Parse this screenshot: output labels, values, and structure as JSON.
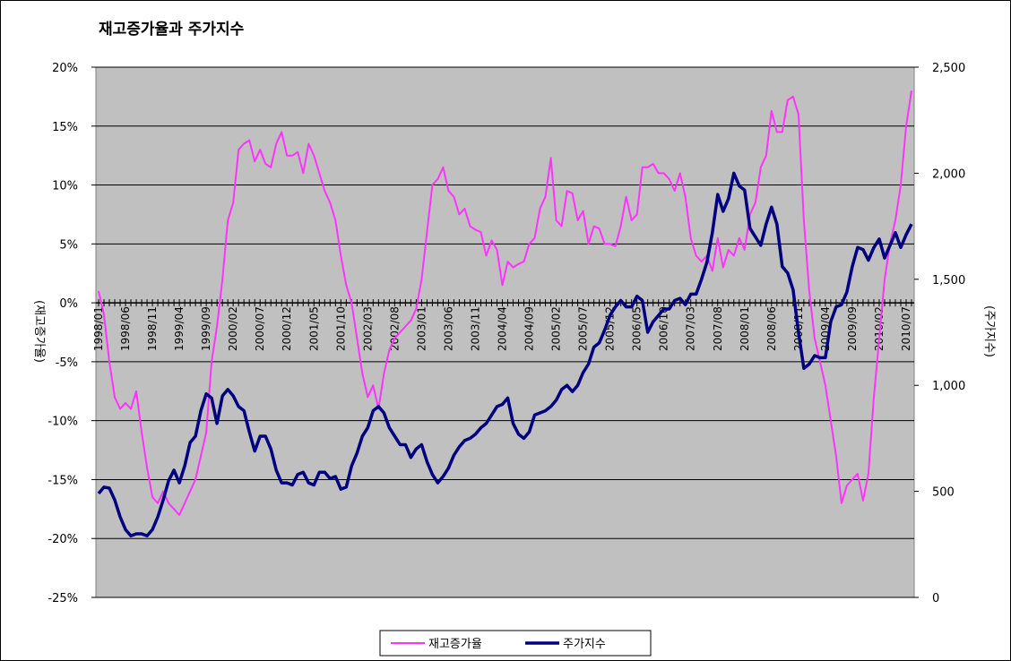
{
  "chart_data": {
    "type": "line",
    "title": "재고증가율과 주가지수",
    "y_label": "(재고증가율)",
    "y2_label": "(주가지수)",
    "categories": [
      "1998/01",
      null,
      null,
      null,
      null,
      "1998/06",
      null,
      null,
      null,
      null,
      "1998/11",
      null,
      null,
      null,
      null,
      "1999/04",
      null,
      null,
      null,
      null,
      "1999/09",
      null,
      null,
      null,
      null,
      "2000/02",
      null,
      null,
      null,
      null,
      "2000/07",
      null,
      null,
      null,
      null,
      "2000/12",
      null,
      null,
      null,
      null,
      "2001/05",
      null,
      null,
      null,
      null,
      "2001/10",
      null,
      null,
      null,
      null,
      "2002/03",
      null,
      null,
      null,
      null,
      "2002/08",
      null,
      null,
      null,
      null,
      "2003/01",
      null,
      null,
      null,
      null,
      "2003/06",
      null,
      null,
      null,
      null,
      "2003/11",
      null,
      null,
      null,
      null,
      "2004/04",
      null,
      null,
      null,
      null,
      "2004/09",
      null,
      null,
      null,
      null,
      "2005/02",
      null,
      null,
      null,
      null,
      "2005/07",
      null,
      null,
      null,
      null,
      "2005/12",
      null,
      null,
      null,
      null,
      "2006/05",
      null,
      null,
      null,
      null,
      "2006/10",
      null,
      null,
      null,
      null,
      "2007/03",
      null,
      null,
      null,
      null,
      "2007/08",
      null,
      null,
      null,
      null,
      "2008/01",
      null,
      null,
      null,
      null,
      "2008/06",
      null,
      null,
      null,
      null,
      "2008/11",
      null,
      null,
      null,
      null,
      "2009/04",
      null,
      null,
      null,
      null,
      "2009/09",
      null,
      null,
      null,
      null,
      "2010/02",
      null,
      null,
      null,
      null,
      "2010/07",
      null
    ],
    "series": [
      {
        "name": "재고증가율",
        "color": "#ff33ff",
        "axis": "y",
        "values": [
          1,
          -1,
          -5,
          -8,
          -9,
          -8.5,
          -9,
          -7.5,
          -11,
          -14,
          -16.5,
          -17,
          -16,
          -17,
          -17.5,
          -18,
          -17,
          -16,
          -15,
          -13,
          -11,
          -5,
          -2,
          2,
          7,
          8.5,
          13,
          13.5,
          13.8,
          12,
          13,
          11.8,
          11.5,
          13.5,
          14.5,
          12.5,
          12.5,
          12.8,
          11,
          13.5,
          12.5,
          11,
          9.5,
          8.5,
          7,
          4,
          1.5,
          0,
          -3,
          -6,
          -8,
          -7,
          -9,
          -6,
          -4,
          -3,
          -2.5,
          -2,
          -1.5,
          -0.5,
          2,
          6,
          10,
          10.5,
          11.5,
          9.5,
          9,
          7.5,
          8,
          6.5,
          6.2,
          6,
          4,
          5.3,
          4.5,
          1.5,
          3.5,
          3,
          3.3,
          3.5,
          5,
          5.5,
          8,
          9,
          12.3,
          7,
          6.5,
          9.5,
          9.3,
          7,
          7.8,
          5,
          6.5,
          6.3,
          5,
          5,
          4.8,
          6.5,
          9,
          7,
          7.5,
          11.5,
          11.5,
          11.8,
          11,
          11,
          10.5,
          9.5,
          11,
          9,
          5.5,
          4,
          3.5,
          4,
          2.7,
          5.5,
          3,
          4.5,
          4,
          5.5,
          4.5,
          7.5,
          8.5,
          11.5,
          12.5,
          16.3,
          14.5,
          14.5,
          17.2,
          17.5,
          16,
          7,
          1,
          -3,
          -5,
          -7,
          -10,
          -13,
          -17,
          -15.5,
          -15,
          -14.5,
          -16.8,
          -14.5,
          -8,
          -3,
          2,
          5,
          7,
          10,
          15,
          18
        ]
      },
      {
        "name": "주가지수",
        "color": "#000080",
        "axis": "y2",
        "values": [
          490,
          520,
          515,
          460,
          380,
          320,
          290,
          300,
          300,
          290,
          320,
          380,
          460,
          550,
          600,
          540,
          620,
          730,
          760,
          880,
          960,
          940,
          820,
          950,
          980,
          950,
          900,
          880,
          780,
          690,
          760,
          760,
          700,
          600,
          540,
          540,
          530,
          580,
          590,
          540,
          530,
          590,
          590,
          560,
          570,
          510,
          520,
          620,
          680,
          760,
          800,
          880,
          900,
          870,
          800,
          760,
          720,
          720,
          660,
          700,
          720,
          640,
          580,
          540,
          570,
          610,
          670,
          710,
          740,
          750,
          770,
          800,
          820,
          860,
          900,
          910,
          940,
          820,
          770,
          750,
          780,
          860,
          870,
          880,
          900,
          930,
          980,
          1000,
          970,
          1000,
          1060,
          1100,
          1180,
          1200,
          1260,
          1330,
          1370,
          1400,
          1370,
          1370,
          1420,
          1400,
          1250,
          1300,
          1330,
          1360,
          1360,
          1400,
          1410,
          1380,
          1430,
          1430,
          1500,
          1580,
          1720,
          1900,
          1820,
          1880,
          2000,
          1940,
          1920,
          1740,
          1700,
          1660,
          1760,
          1840,
          1760,
          1560,
          1530,
          1450,
          1250,
          1080,
          1100,
          1140,
          1130,
          1130,
          1300,
          1370,
          1380,
          1440,
          1560,
          1650,
          1640,
          1590,
          1650,
          1690,
          1600,
          1660,
          1720,
          1650,
          1710,
          1760
        ]
      }
    ],
    "ylim": [
      -25,
      20
    ],
    "yticks": [
      {
        "value": -25,
        "label": "-25%"
      },
      {
        "value": -20,
        "label": "-20%"
      },
      {
        "value": -15,
        "label": "-15%"
      },
      {
        "value": -10,
        "label": "-10%"
      },
      {
        "value": -5,
        "label": "-5%"
      },
      {
        "value": 0,
        "label": "0%"
      },
      {
        "value": 5,
        "label": "5%"
      },
      {
        "value": 10,
        "label": "10%"
      },
      {
        "value": 15,
        "label": "15%"
      },
      {
        "value": 20,
        "label": "20%"
      }
    ],
    "y2lim": [
      0,
      2500
    ],
    "y2ticks": [
      0,
      500,
      {
        "value": 1000,
        "label": "1,000"
      },
      {
        "value": 1500,
        "label": "1,500"
      },
      {
        "value": 2000,
        "label": "2,000"
      },
      {
        "value": 2500,
        "label": "2,500"
      }
    ],
    "grid": true,
    "legend": "bottom"
  }
}
